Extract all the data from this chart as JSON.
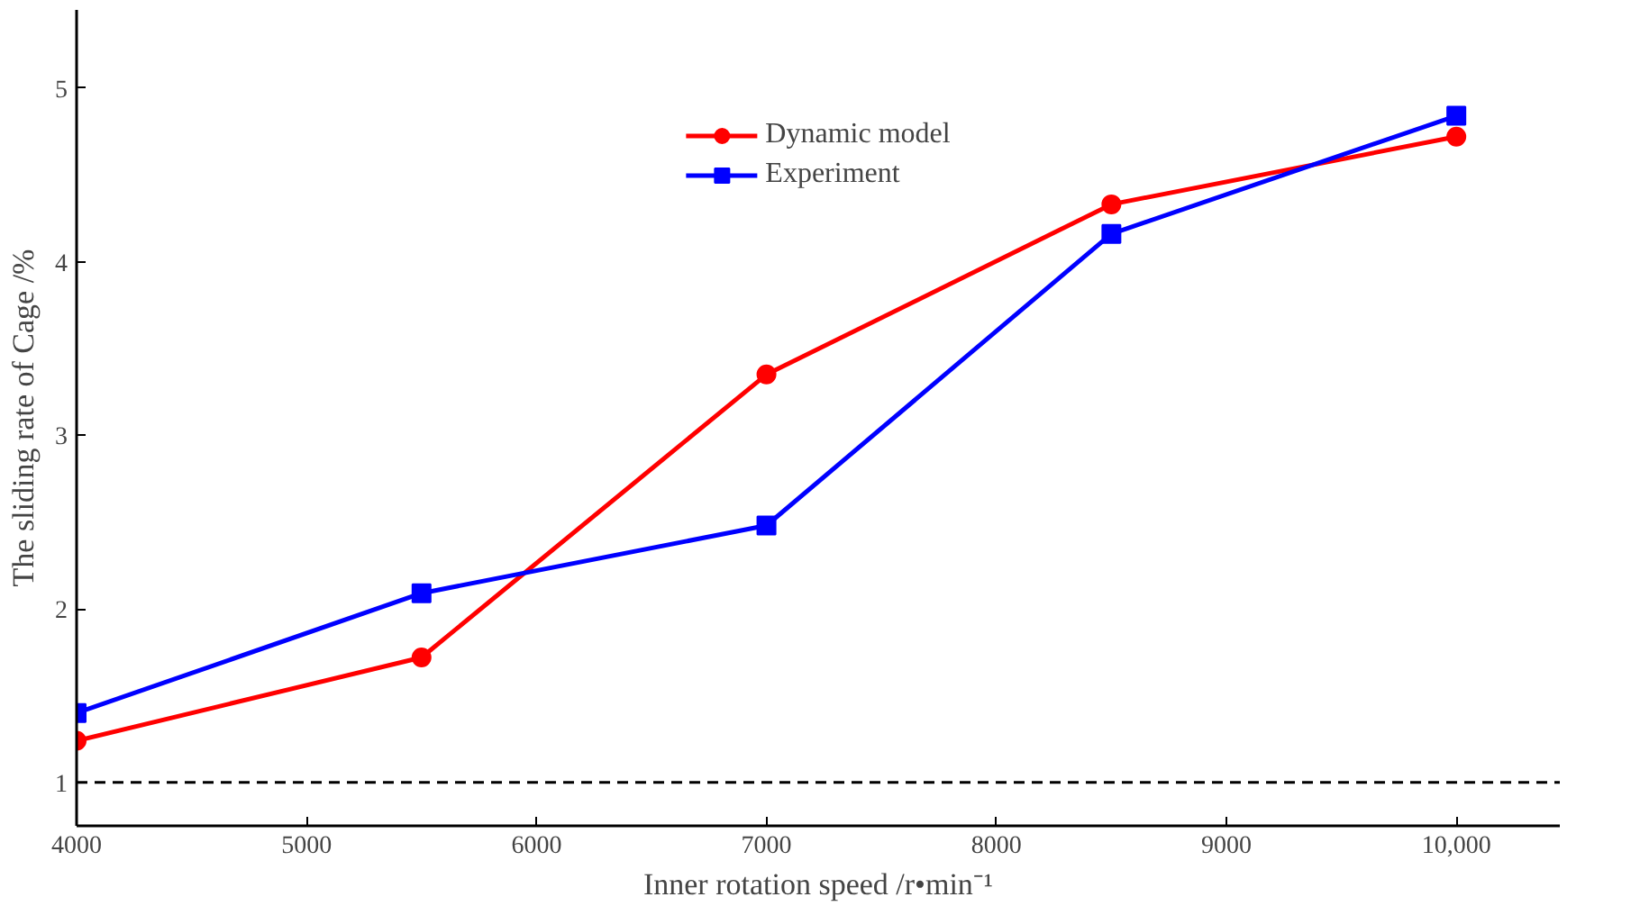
{
  "chart_data": {
    "type": "line",
    "xlabel": "Inner rotation speed /r•min⁻¹",
    "ylabel": "The sliding rate of Cage /%",
    "x": [
      4000,
      5500,
      7000,
      8500,
      10000
    ],
    "series": [
      {
        "name": "Dynamic model",
        "color": "#ff0000",
        "marker": "circle",
        "values": [
          1.24,
          1.72,
          3.35,
          4.33,
          4.72
        ]
      },
      {
        "name": "Experiment",
        "color": "#0000ff",
        "marker": "square",
        "values": [
          1.4,
          2.09,
          2.48,
          4.16,
          4.84
        ]
      }
    ],
    "xlim": [
      4000,
      10450
    ],
    "ylim": [
      0.75,
      5.45
    ],
    "xticks": [
      4000,
      5000,
      6000,
      7000,
      8000,
      9000,
      {
        "value": 10000,
        "label": "10,000"
      }
    ],
    "yticks": [
      1,
      2,
      3,
      4,
      5
    ],
    "ref_lines": [
      {
        "axis": "y",
        "value": 1,
        "color": "#000000",
        "line_style": "dashed"
      }
    ],
    "grid": false,
    "legend": "top"
  }
}
